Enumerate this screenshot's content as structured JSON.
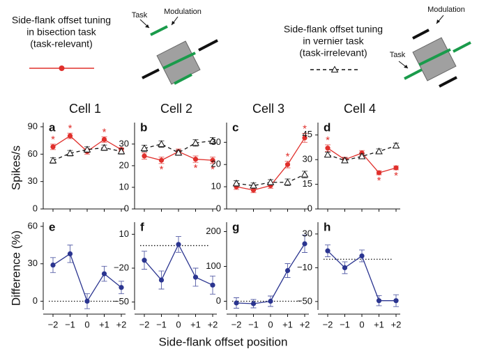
{
  "header": {
    "left": {
      "lines": [
        "Side-flank offset tuning",
        "in bisection task",
        "(task-relevant)"
      ],
      "task": "Task",
      "modulation": "Modulation",
      "color": "#e0302c",
      "dash": false,
      "marker": "circle"
    },
    "right": {
      "lines": [
        "Side-flank offset tuning",
        "in vernier task",
        "(task-irrelevant)"
      ],
      "task": "Task",
      "modulation": "Modulation",
      "color": "#111111",
      "dash": true,
      "marker": "triangle"
    }
  },
  "y_labels": {
    "top": "Spikes/s",
    "bottom": "Difference (%)"
  },
  "x_label": "Side-flank offset position",
  "chart_data": [
    {
      "type": "line",
      "title": "Cell 1",
      "panel": "a",
      "categories": [
        "−2",
        "−1",
        "0",
        "+1",
        "+2"
      ],
      "ylim": [
        0,
        90
      ],
      "yticks": [
        0,
        30,
        60,
        90
      ],
      "series": [
        {
          "color": "#e0302c",
          "dash": false,
          "marker": "circle",
          "values": [
            68,
            80,
            63,
            76,
            65
          ],
          "errors": [
            3,
            3,
            3,
            3,
            2
          ],
          "stars": [
            "*",
            "*",
            null,
            "*",
            null
          ]
        },
        {
          "color": "#111111",
          "dash": true,
          "marker": "triangle",
          "values": [
            53,
            61,
            65,
            67,
            63
          ],
          "errors": [
            3,
            3,
            3,
            3,
            3
          ],
          "stars": [
            null,
            null,
            null,
            null,
            null
          ]
        }
      ]
    },
    {
      "type": "line",
      "title": "Cell 2",
      "panel": "b",
      "categories": [
        "−2",
        "−1",
        "0",
        "+1",
        "+2"
      ],
      "ylim": [
        0,
        38
      ],
      "yticks": [
        0,
        10,
        20,
        30
      ],
      "series": [
        {
          "color": "#e0302c",
          "dash": false,
          "marker": "circle",
          "values": [
            24.5,
            22.5,
            26.5,
            23,
            22.5
          ],
          "errors": [
            1.5,
            1.5,
            1.2,
            1.5,
            1.5
          ],
          "stars": [
            null,
            "*",
            null,
            "*",
            "*"
          ]
        },
        {
          "color": "#111111",
          "dash": true,
          "marker": "triangle",
          "values": [
            28,
            30,
            26,
            30.5,
            31.5
          ],
          "errors": [
            1.5,
            1.5,
            1.2,
            1.5,
            1.5
          ],
          "stars": [
            null,
            null,
            null,
            null,
            null
          ]
        }
      ]
    },
    {
      "type": "line",
      "title": "Cell 3",
      "panel": "c",
      "categories": [
        "−2",
        "−1",
        "0",
        "+1",
        "+2"
      ],
      "ylim": [
        0,
        37
      ],
      "yticks": [
        0,
        10,
        20,
        30
      ],
      "series": [
        {
          "color": "#e0302c",
          "dash": false,
          "marker": "circle",
          "values": [
            10,
            8.5,
            10.5,
            20,
            32
          ],
          "errors": [
            1.2,
            1.2,
            1.2,
            1.5,
            2
          ],
          "stars": [
            null,
            null,
            null,
            "*",
            "*"
          ]
        },
        {
          "color": "#111111",
          "dash": true,
          "marker": "triangle",
          "values": [
            11.5,
            10.5,
            12,
            12,
            15.5
          ],
          "errors": [
            1.2,
            1.2,
            1.2,
            1.5,
            1.5
          ],
          "stars": [
            null,
            null,
            null,
            null,
            null
          ]
        }
      ]
    },
    {
      "type": "line",
      "title": "Cell 4",
      "panel": "d",
      "categories": [
        "−2",
        "−1",
        "0",
        "+1",
        "+2"
      ],
      "ylim": [
        0,
        50
      ],
      "yticks": [
        0,
        15,
        30,
        45
      ],
      "series": [
        {
          "color": "#e0302c",
          "dash": false,
          "marker": "circle",
          "values": [
            37,
            30,
            34,
            22,
            25
          ],
          "errors": [
            2,
            1.5,
            1.5,
            1.2,
            1.2
          ],
          "stars": [
            "*",
            null,
            null,
            "*",
            "*"
          ]
        },
        {
          "color": "#111111",
          "dash": true,
          "marker": "triangle",
          "values": [
            33,
            29.5,
            32,
            35,
            38.5
          ],
          "errors": [
            1.5,
            1.5,
            1.5,
            1.5,
            1.5
          ],
          "stars": [
            null,
            null,
            null,
            null,
            null
          ]
        }
      ]
    },
    {
      "type": "line",
      "panel": "e",
      "categories": [
        "−2",
        "−1",
        "0",
        "+1",
        "+2"
      ],
      "ylim": [
        -7,
        60
      ],
      "yticks": [
        0,
        30,
        60
      ],
      "hline": 0,
      "series": [
        {
          "color": "#2b3590",
          "dash": false,
          "marker": "circle",
          "values": [
            29,
            38,
            0,
            22,
            11
          ],
          "errors": [
            6,
            7,
            6,
            6,
            5
          ]
        }
      ]
    },
    {
      "type": "line",
      "panel": "f",
      "categories": [
        "−2",
        "−1",
        "0",
        "+1",
        "+2"
      ],
      "ylim": [
        -57,
        17
      ],
      "yticks": [
        {
          "value": 10,
          "label": "10"
        },
        {
          "value": -20,
          "label": "−20"
        },
        {
          "value": -50,
          "label": "−50"
        }
      ],
      "hline": 0,
      "series": [
        {
          "color": "#2b3590",
          "dash": false,
          "marker": "circle",
          "values": [
            -13,
            -30.5,
            1,
            -28,
            -35
          ],
          "errors": [
            8,
            8,
            7,
            8,
            8
          ]
        }
      ]
    },
    {
      "type": "line",
      "panel": "g",
      "categories": [
        "−2",
        "−1",
        "0",
        "+1",
        "+2"
      ],
      "ylim": [
        -25,
        215
      ],
      "yticks": [
        0,
        100,
        200
      ],
      "hline": 0,
      "series": [
        {
          "color": "#2b3590",
          "dash": false,
          "marker": "circle",
          "values": [
            -5,
            -7,
            0,
            88,
            165
          ],
          "errors": [
            15,
            12,
            15,
            20,
            25
          ]
        }
      ]
    },
    {
      "type": "line",
      "panel": "h",
      "categories": [
        "−2",
        "−1",
        "0",
        "+1",
        "+2"
      ],
      "ylim": [
        -60,
        39
      ],
      "yticks": [
        {
          "value": 30,
          "label": "30"
        },
        {
          "value": -10,
          "label": "−10"
        },
        {
          "value": -50,
          "label": "−50"
        }
      ],
      "hline": 0,
      "series": [
        {
          "color": "#2b3590",
          "dash": false,
          "marker": "circle",
          "values": [
            10,
            -10,
            4,
            -49,
            -49
          ],
          "errors": [
            7,
            7,
            7,
            6,
            7
          ]
        }
      ]
    }
  ]
}
